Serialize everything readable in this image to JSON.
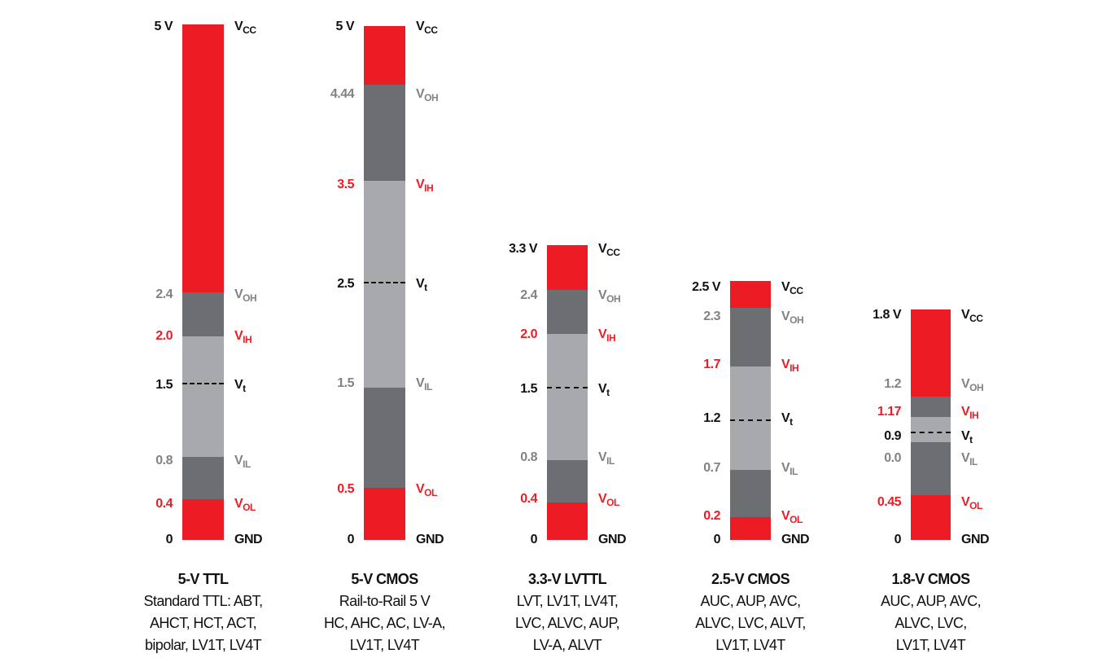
{
  "colors": {
    "red": "#ed1c24",
    "dark": "#6d6e71",
    "light": "#a7a9ac",
    "grey_text": "#808285",
    "black": "#111111"
  },
  "columns": [
    {
      "title": "5-V TTL",
      "lines": [
        "Standard TTL: ABT,",
        "AHCT, HCT, ACT,",
        "bipolar, LV1T, LV4T"
      ],
      "levels": [
        [
          "5 V",
          "black",
          "V",
          "CC",
          "black"
        ],
        [
          "2.4",
          "grey",
          "V",
          "OH",
          "grey"
        ],
        [
          "2.0",
          "red",
          "V",
          "IH",
          "red"
        ],
        [
          "1.5",
          "black",
          "V",
          "t",
          "black"
        ],
        [
          "0.8",
          "grey",
          "V",
          "IL",
          "grey"
        ],
        [
          "0.4",
          "red",
          "V",
          "OL",
          "red"
        ],
        [
          "0",
          "black",
          "GND",
          "",
          "black"
        ]
      ]
    },
    {
      "title": "5-V CMOS",
      "lines": [
        "Rail-to-Rail 5 V",
        "HC, AHC, AC, LV-A,",
        "LV1T, LV4T"
      ],
      "levels": [
        [
          "5 V",
          "black",
          "V",
          "CC",
          "black"
        ],
        [
          "4.44",
          "grey",
          "V",
          "OH",
          "grey"
        ],
        [
          "3.5",
          "red",
          "V",
          "IH",
          "red"
        ],
        [
          "2.5",
          "black",
          "V",
          "t",
          "black"
        ],
        [
          "1.5",
          "grey",
          "V",
          "IL",
          "grey"
        ],
        [
          "0.5",
          "red",
          "V",
          "OL",
          "red"
        ],
        [
          "0",
          "black",
          "GND",
          "",
          "black"
        ]
      ]
    },
    {
      "title": "3.3-V LVTTL",
      "lines": [
        "LVT, LV1T, LV4T,",
        "LVC, ALVC, AUP,",
        "LV-A, ALVT"
      ],
      "levels": [
        [
          "3.3 V",
          "black",
          "V",
          "CC",
          "black"
        ],
        [
          "2.4",
          "grey",
          "V",
          "OH",
          "grey"
        ],
        [
          "2.0",
          "red",
          "V",
          "IH",
          "red"
        ],
        [
          "1.5",
          "black",
          "V",
          "t",
          "black"
        ],
        [
          "0.8",
          "grey",
          "V",
          "IL",
          "grey"
        ],
        [
          "0.4",
          "red",
          "V",
          "OL",
          "red"
        ],
        [
          "0",
          "black",
          "GND",
          "",
          "black"
        ]
      ]
    },
    {
      "title": "2.5-V CMOS",
      "lines": [
        "AUC, AUP, AVC,",
        "ALVC, LVC, ALVT,",
        "LV1T, LV4T"
      ],
      "levels": [
        [
          "2.5 V",
          "black",
          "V",
          "CC",
          "black"
        ],
        [
          "2.3",
          "grey",
          "V",
          "OH",
          "grey"
        ],
        [
          "1.7",
          "red",
          "V",
          "IH",
          "red"
        ],
        [
          "1.2",
          "black",
          "V",
          "t",
          "black"
        ],
        [
          "0.7",
          "grey",
          "V",
          "IL",
          "grey"
        ],
        [
          "0.2",
          "red",
          "V",
          "OL",
          "red"
        ],
        [
          "0",
          "black",
          "GND",
          "",
          "black"
        ]
      ]
    },
    {
      "title": "1.8-V CMOS",
      "lines": [
        "AUC, AUP, AVC,",
        "ALVC, LVC,",
        "LV1T, LV4T"
      ],
      "levels": [
        [
          "1.8 V",
          "black",
          "V",
          "CC",
          "black"
        ],
        [
          "1.2",
          "grey",
          "V",
          "OH",
          "grey"
        ],
        [
          "1.17",
          "red",
          "V",
          "IH",
          "red"
        ],
        [
          "0.9",
          "black",
          "V",
          "t",
          "black"
        ],
        [
          "0.0",
          "grey",
          "V",
          "IL",
          "grey"
        ],
        [
          "0.45",
          "red",
          "V",
          "OL",
          "red"
        ],
        [
          "0",
          "black",
          "GND",
          "",
          "black"
        ]
      ]
    }
  ]
}
